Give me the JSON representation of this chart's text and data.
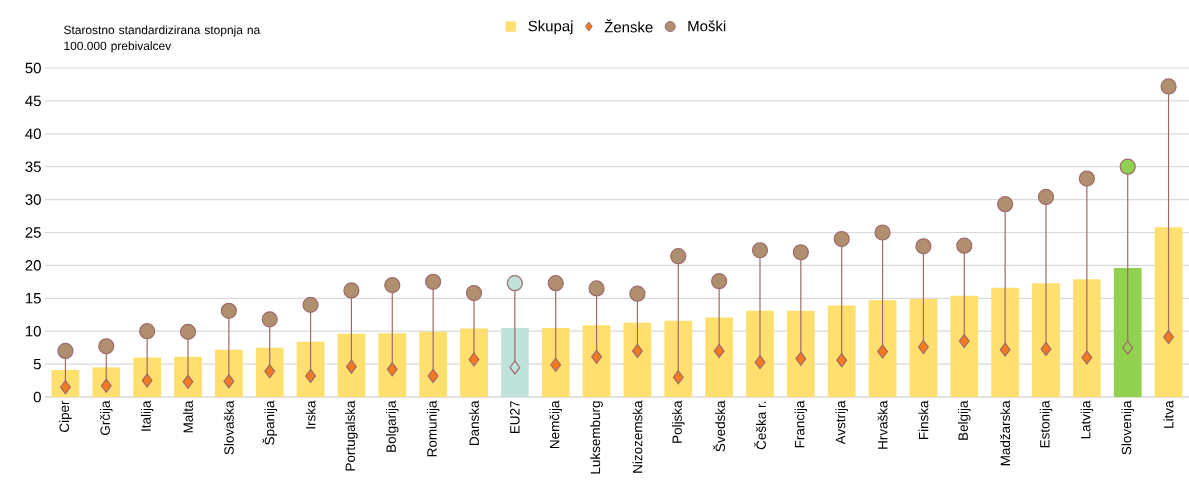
{
  "chart_data": {
    "type": "bar",
    "ylabel": "Starostno standardizirana stopnja na 100.000 prebivalcev",
    "categories": [
      "Ciper",
      "Grčija",
      "Italija",
      "Malta",
      "Slovaška",
      "Španija",
      "Irska",
      "Portugalska",
      "Bolgarija",
      "Romunija",
      "Danska",
      "EU27",
      "Nemčija",
      "Luksemburg",
      "Nizozemska",
      "Poljska",
      "Švedska",
      "Češka r.",
      "Francija",
      "Avstrija",
      "Hrvaška",
      "Finska",
      "Belgija",
      "Madžarska",
      "Estonija",
      "Latvija",
      "Slovenija",
      "Litva"
    ],
    "series": [
      {
        "name": "Skupaj",
        "color": "#ffdf6e",
        "colors": [
          "#ffdf6e",
          "#ffdf6e",
          "#ffdf6e",
          "#ffdf6e",
          "#ffdf6e",
          "#ffdf6e",
          "#ffdf6e",
          "#ffdf6e",
          "#ffdf6e",
          "#ffdf6e",
          "#ffdf6e",
          "#bfe3da",
          "#ffdf6e",
          "#ffdf6e",
          "#ffdf6e",
          "#ffdf6e",
          "#ffdf6e",
          "#ffdf6e",
          "#ffdf6e",
          "#ffdf6e",
          "#ffdf6e",
          "#ffdf6e",
          "#ffdf6e",
          "#ffdf6e",
          "#ffdf6e",
          "#ffdf6e",
          "#92d050",
          "#ffdf6e"
        ],
        "values": [
          4.1,
          4.5,
          6.0,
          6.1,
          7.2,
          7.5,
          8.4,
          9.6,
          9.7,
          9.9,
          10.4,
          10.5,
          10.5,
          10.9,
          11.3,
          11.6,
          12.1,
          13.1,
          13.1,
          13.9,
          14.7,
          14.9,
          15.4,
          16.6,
          17.3,
          17.9,
          19.6,
          25.8
        ]
      },
      {
        "name": "Ženske",
        "type": "scatter",
        "marker": "diamond",
        "color": "#f47920",
        "colors": [
          "#f47920",
          "#f47920",
          "#f47920",
          "#f47920",
          "#f47920",
          "#f47920",
          "#f47920",
          "#f47920",
          "#f47920",
          "#f47920",
          "#f47920",
          "#bfe3da",
          "#f47920",
          "#f47920",
          "#f47920",
          "#f47920",
          "#f47920",
          "#f47920",
          "#f47920",
          "#f47920",
          "#f47920",
          "#f47920",
          "#f47920",
          "#f47920",
          "#f47920",
          "#f47920",
          "#92d050",
          "#f47920"
        ],
        "values": [
          1.5,
          1.7,
          2.5,
          2.3,
          2.4,
          3.9,
          3.2,
          4.6,
          4.2,
          3.2,
          5.7,
          4.5,
          4.9,
          6.1,
          7.0,
          3.0,
          7.0,
          5.3,
          5.8,
          5.6,
          6.9,
          7.6,
          8.5,
          7.2,
          7.3,
          6.0,
          7.5,
          9.1
        ]
      },
      {
        "name": "Moški",
        "type": "scatter",
        "marker": "circle",
        "color": "#b08f6e",
        "colors": [
          "#b08f6e",
          "#b08f6e",
          "#b08f6e",
          "#b08f6e",
          "#b08f6e",
          "#b08f6e",
          "#b08f6e",
          "#b08f6e",
          "#b08f6e",
          "#b08f6e",
          "#b08f6e",
          "#bfe3da",
          "#b08f6e",
          "#b08f6e",
          "#b08f6e",
          "#b08f6e",
          "#b08f6e",
          "#b08f6e",
          "#b08f6e",
          "#b08f6e",
          "#b08f6e",
          "#b08f6e",
          "#b08f6e",
          "#b08f6e",
          "#b08f6e",
          "#b08f6e",
          "#92d050",
          "#b08f6e"
        ],
        "values": [
          7.0,
          7.7,
          10.0,
          9.9,
          13.1,
          11.8,
          14.0,
          16.2,
          17.0,
          17.5,
          15.8,
          17.3,
          17.3,
          16.5,
          15.7,
          21.4,
          17.6,
          22.3,
          22.0,
          24.0,
          25.0,
          22.9,
          23.0,
          29.3,
          30.4,
          33.2,
          35.0,
          47.2
        ]
      }
    ],
    "ylim": [
      0,
      50
    ],
    "yticks": [
      0,
      5,
      10,
      15,
      20,
      25,
      30,
      35,
      40,
      45,
      50
    ],
    "grid": "y",
    "legend": "top"
  }
}
